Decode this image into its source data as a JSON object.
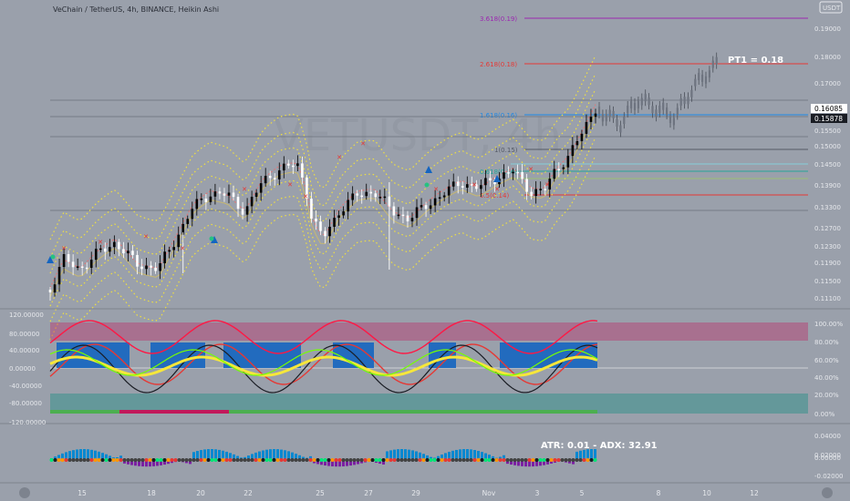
{
  "title": "VeChain / TetherUS, 4h, BINANCE, Heikin Ashi",
  "watermark": "VETUSDT, 4h",
  "currency_badge": "USDT",
  "pt1_label": "PT1 = 0.18",
  "atr_adx_label": "ATR: 0.01 - ADX: 32.91",
  "price_badges": [
    "0.16085",
    "0.15878"
  ],
  "x_ticks": [
    "15",
    "18",
    "20",
    "22",
    "25",
    "27",
    "29",
    "Nov",
    "3",
    "5",
    "8",
    "10",
    "12"
  ],
  "colors": {
    "bg": "#9aa0ab",
    "bull": "#000000",
    "bear": "#ffffff",
    "band": "#f0e040",
    "fib_3618": "#9c27b0",
    "fib_2618": "#e53935",
    "fib_1618": "#1e88e5",
    "fib_1": "#555a66",
    "fib_0618": "#26a69a",
    "fib_05": "#e53935"
  },
  "chart_data": [
    {
      "type": "candlestick",
      "title": "VeChain / TetherUS, 4h, BINANCE, Heikin Ashi",
      "y_ticks": [
        "0.19000",
        "0.18000",
        "0.17000",
        "0.15500",
        "0.15000",
        "0.14500",
        "0.13900",
        "0.13300",
        "0.12700",
        "0.12300",
        "0.11900",
        "0.11500",
        "0.11100"
      ],
      "fib_levels": [
        {
          "label": "3.618(0.19)",
          "value": 0.19
        },
        {
          "label": "2.618(0.18)",
          "value": 0.18
        },
        {
          "label": "1.618(0.16)",
          "value": 0.16
        },
        {
          "label": "1(0.15)",
          "value": 0.15
        },
        {
          "label": "0.618(0.14)",
          "value": 0.14
        },
        {
          "label": "0.5(0.14)",
          "value": 0.14
        }
      ],
      "annotations": [
        "PT1 = 0.18"
      ]
    },
    {
      "type": "line",
      "name": "oscillator",
      "y_ticks": [
        "120.00000",
        "80.00000",
        "40.00000",
        "0.00000",
        "-40.00000",
        "-80.00000",
        "-120.00000"
      ],
      "right_ticks": [
        "100.00%",
        "80.00%",
        "60.00%",
        "40.00%",
        "20.00%",
        "0.00%"
      ]
    },
    {
      "type": "bar",
      "name": "volume",
      "annotations": [
        "ATR: 0.01 - ADX: 32.91"
      ],
      "y_ticks": [
        "0.04000",
        "0.02000",
        "0.00000",
        "-0.02000"
      ]
    }
  ]
}
